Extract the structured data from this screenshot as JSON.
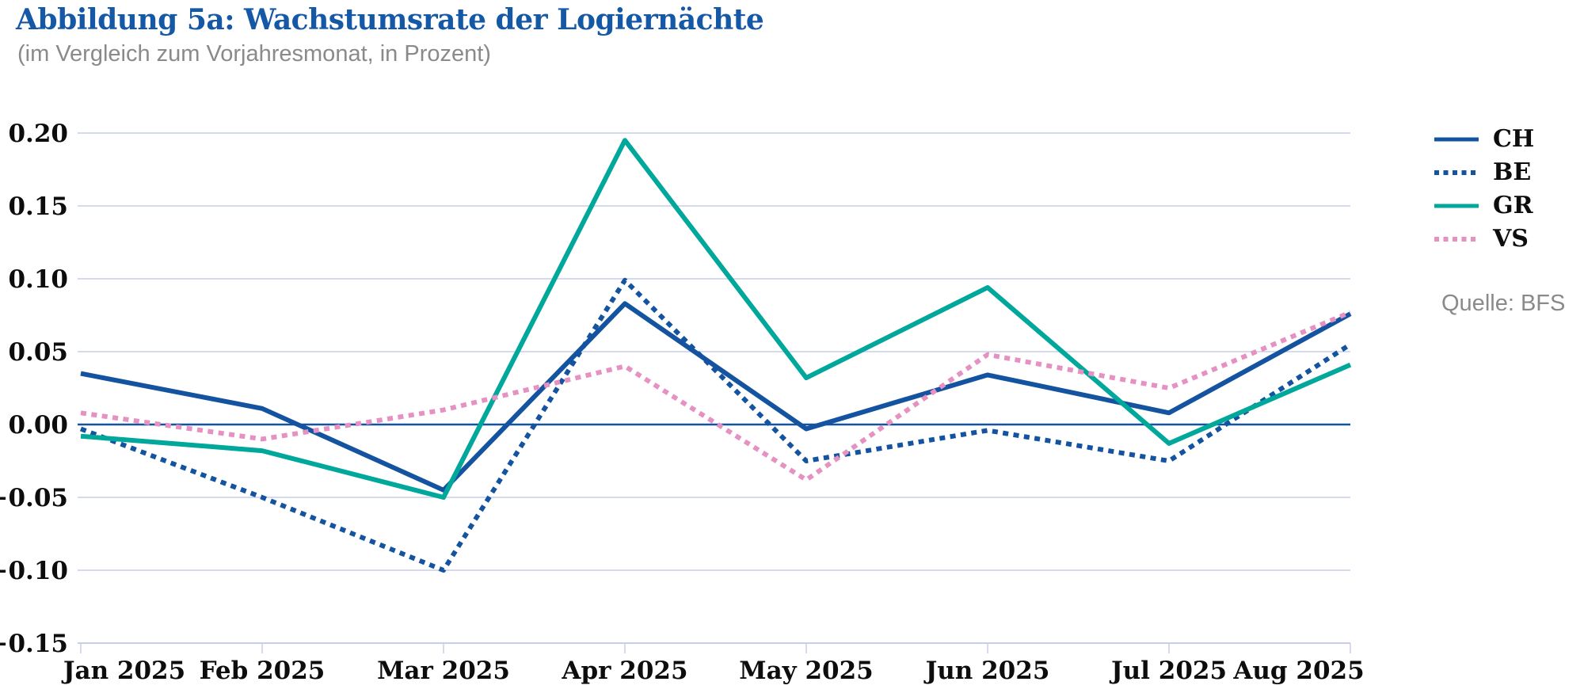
{
  "header": {
    "title": "Abbildung 5a: Wachstumsrate der Logiernächte",
    "subtitle": "(im Vergleich zum Vorjahresmonat, in Prozent)"
  },
  "source": {
    "label": "Quelle: BFS"
  },
  "colors": {
    "navy": "#1353a0",
    "teal": "#00a79b",
    "pink": "#e592c3",
    "grid": "#c9cdea",
    "title_blue": "#1558a6",
    "text_gray": "#8a8a8a",
    "axis_text": "#0d0d0d"
  },
  "chart_data": {
    "type": "line",
    "title": "Abbildung 5a: Wachstumsrate der Logiernächte",
    "subtitle": "(im Vergleich zum Vorjahresmonat, in Prozent)",
    "categories": [
      "Jan 2025",
      "Feb 2025",
      "Mar 2025",
      "Apr 2025",
      "May 2025",
      "Jun 2025",
      "Jul 2025",
      "Aug 2025"
    ],
    "series": [
      {
        "name": "CH",
        "color": "#1353a0",
        "style": "solid",
        "values": [
          0.035,
          0.011,
          -0.045,
          0.083,
          -0.003,
          0.034,
          0.008,
          0.076
        ]
      },
      {
        "name": "BE",
        "color": "#1353a0",
        "style": "dotted",
        "values": [
          -0.003,
          -0.05,
          -0.1,
          0.099,
          -0.025,
          -0.004,
          -0.025,
          0.055
        ]
      },
      {
        "name": "GR",
        "color": "#00a79b",
        "style": "solid",
        "values": [
          -0.008,
          -0.018,
          -0.05,
          0.195,
          0.032,
          0.094,
          -0.013,
          0.041
        ]
      },
      {
        "name": "VS",
        "color": "#e592c3",
        "style": "dotted",
        "values": [
          0.008,
          -0.01,
          0.01,
          0.04,
          -0.038,
          0.048,
          0.025,
          0.077
        ]
      }
    ],
    "ylim": [
      -0.15,
      0.2
    ],
    "yticks": [
      {
        "value": 0.2,
        "label": "0.20"
      },
      {
        "value": 0.15,
        "label": "0.15"
      },
      {
        "value": 0.1,
        "label": "0.10"
      },
      {
        "value": 0.05,
        "label": "0.05"
      },
      {
        "value": 0.0,
        "label": "0.00"
      },
      {
        "value": -0.05,
        "label": "−0.05"
      },
      {
        "value": -0.1,
        "label": "−0.10"
      },
      {
        "value": -0.15,
        "label": "−0.15"
      }
    ],
    "grid": "horizontal",
    "zero_line": true,
    "legend_position": "right",
    "legend_entries": [
      "CH",
      "BE",
      "GR",
      "VS"
    ]
  }
}
